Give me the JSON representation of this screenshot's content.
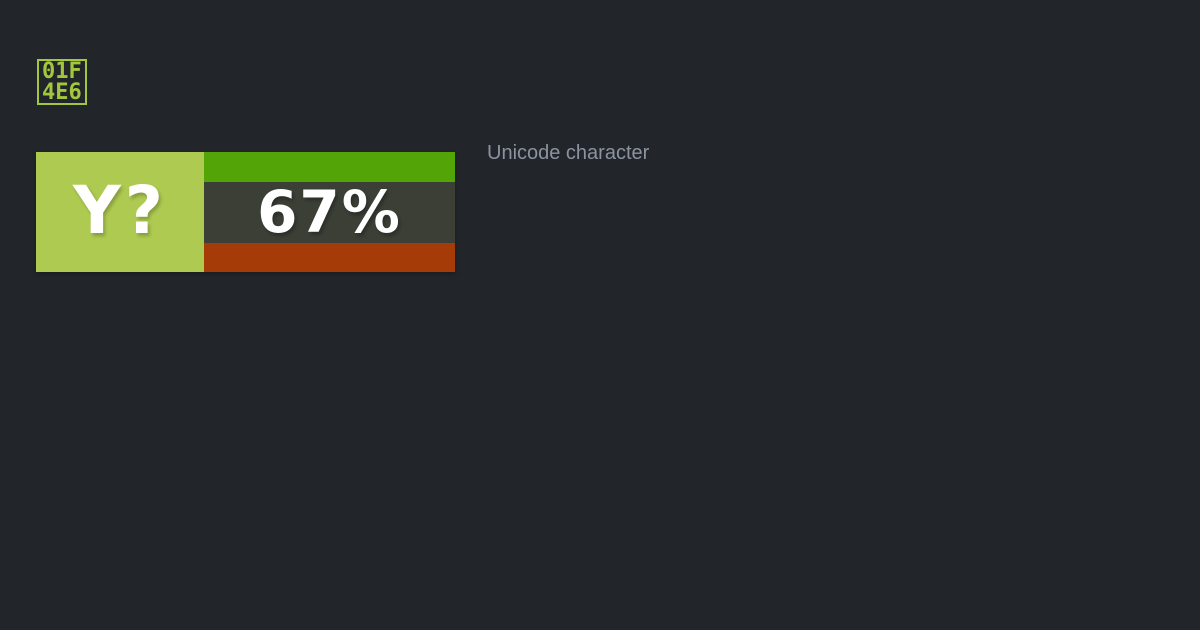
{
  "colors": {
    "bg": "#22262a",
    "lime": "#aeca51",
    "codepoint_green": "#a3c73c",
    "bar_green": "#53a406",
    "panel_dark": "#3b3f36",
    "bar_red": "#a53c07",
    "label_gray": "#8b93a0",
    "white": "#ffffff"
  },
  "codepoint": {
    "line1": "01F",
    "line2": "4E6"
  },
  "card": {
    "glyph": "Y?",
    "support_percent": "67%"
  },
  "label": {
    "text": "Unicode character"
  }
}
